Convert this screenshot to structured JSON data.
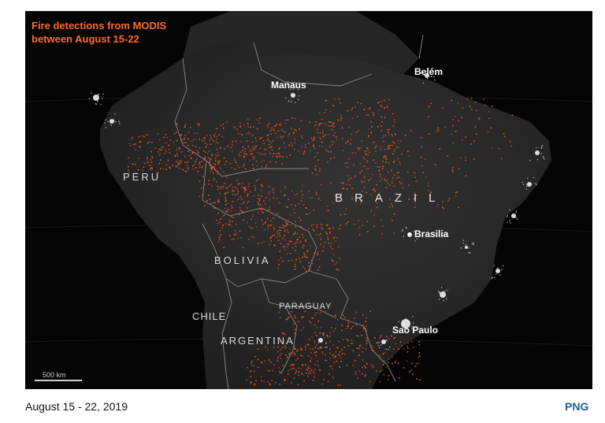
{
  "map": {
    "title_line1": "Fire detections from MODIS",
    "title_line2": "between August 15-22",
    "cities": {
      "manaus": "Manaus",
      "belem": "Belém",
      "brasilia": "Brasilia",
      "sao_paulo": "Sao Paulo"
    },
    "countries": {
      "peru": "PERU",
      "brazil": "BRAZIL",
      "bolivia": "BOLIVIA",
      "paraguay": "PARAGUAY",
      "chile": "CHILE",
      "argentina": "ARGENTINA"
    },
    "scale_label": "500 km",
    "colors": {
      "fire": "#ff5a1f",
      "title": "#ff6a2a",
      "land": "#2d2d2d",
      "ocean": "#050505"
    }
  },
  "caption": {
    "date": "August 15 - 22, 2019"
  },
  "download": {
    "label": "PNG"
  }
}
